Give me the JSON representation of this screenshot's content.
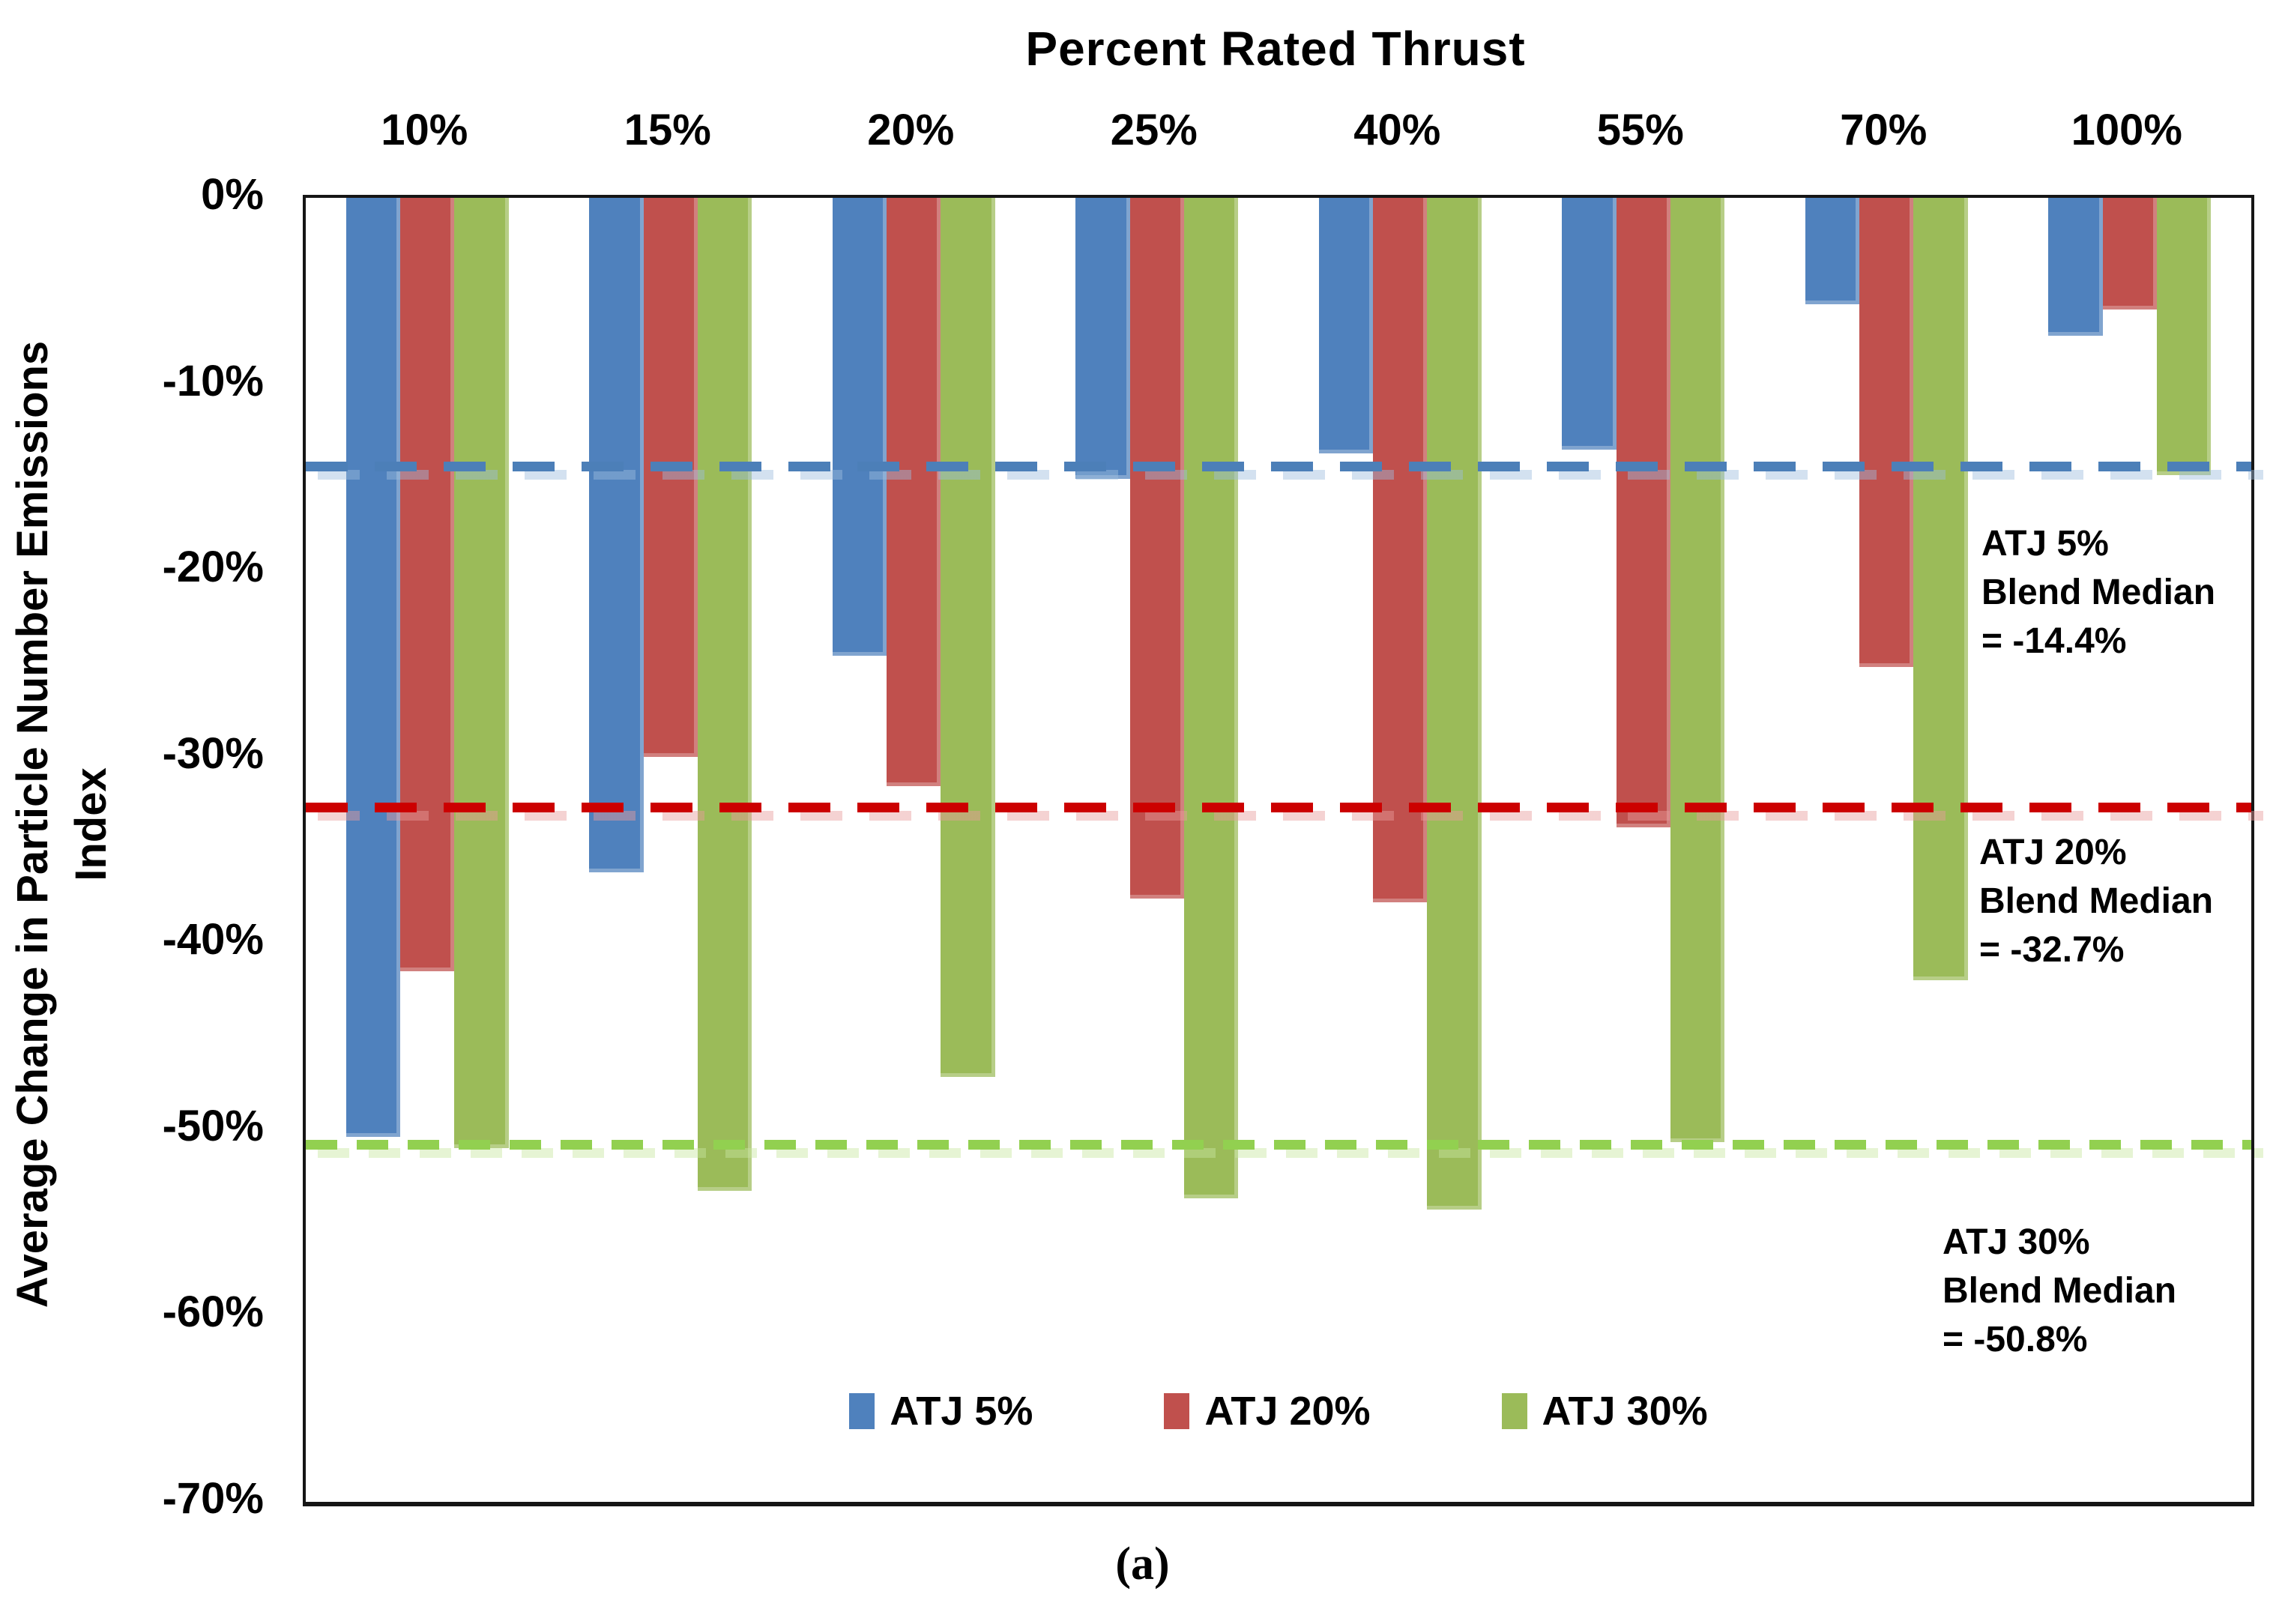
{
  "chart_data": {
    "type": "bar",
    "title": "Percent Rated Thrust",
    "ylabel_lines": [
      "Average Change in Particle Number Emissions",
      "Index"
    ],
    "xlabel": "",
    "categories": [
      "10%",
      "15%",
      "20%",
      "25%",
      "40%",
      "55%",
      "70%",
      "100%"
    ],
    "series": [
      {
        "name": "ATJ 5%",
        "color": "#4F81BD",
        "values": [
          -50.4,
          -36.2,
          -24.6,
          -15.1,
          -13.7,
          -13.5,
          -5.7,
          -7.4
        ]
      },
      {
        "name": "ATJ 20%",
        "color": "#C0504D",
        "values": [
          -41.5,
          -30.0,
          -31.6,
          -37.6,
          -37.8,
          -33.8,
          -25.2,
          -6.0
        ]
      },
      {
        "name": "ATJ 30%",
        "color": "#9BBB59",
        "values": [
          -51.0,
          -53.3,
          -47.2,
          -53.7,
          -54.3,
          -50.7,
          -42.0,
          -14.9
        ]
      }
    ],
    "y_ticks": [
      {
        "label": "0%",
        "value": 0
      },
      {
        "label": "-10%",
        "value": -10
      },
      {
        "label": "-20%",
        "value": -20
      },
      {
        "label": "-30%",
        "value": -30
      },
      {
        "label": "-40%",
        "value": -40
      },
      {
        "label": "-50%",
        "value": -50
      },
      {
        "label": "-60%",
        "value": -60
      },
      {
        "label": "-70%",
        "value": -70
      }
    ],
    "ylim": [
      -70,
      0
    ],
    "grid": false,
    "legend_position": "bottom-center-inside",
    "reference_lines": [
      {
        "value": -14.4,
        "color": "#4C7FB8",
        "shadow_color": "#9DBCDD",
        "annotation_lines": [
          "ATJ 5%",
          "Blend Median",
          "= -14.4%"
        ]
      },
      {
        "value": -32.7,
        "color": "#CC0000",
        "shadow_color": "#E89B9B",
        "annotation_lines": [
          "ATJ 20%",
          "Blend Median",
          "= -32.7%"
        ]
      },
      {
        "value": -50.8,
        "color": "#92D050",
        "shadow_color": "#C8E6A0",
        "annotation_lines": [
          "ATJ 30%",
          "Blend Median",
          "= -50.8%"
        ]
      }
    ]
  },
  "caption": "(a)"
}
